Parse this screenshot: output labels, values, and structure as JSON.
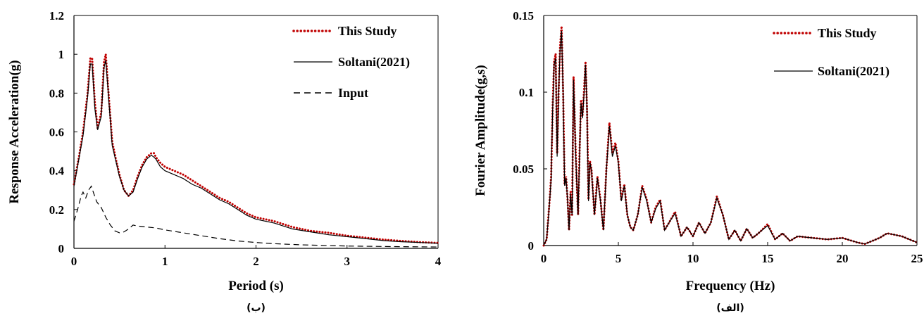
{
  "charts": [
    {
      "id": "left",
      "caption": "(ب)",
      "chart_data": {
        "type": "line",
        "title": "",
        "xlabel": "Period (s)",
        "ylabel": "Response Acceleration(g)",
        "xlim": [
          0,
          4
        ],
        "ylim": [
          0,
          1.2
        ],
        "xticks": [
          "0",
          "1",
          "2",
          "3",
          "4"
        ],
        "xtick_values": [
          0,
          1,
          2,
          3,
          4
        ],
        "yticks": [
          "0",
          "0.2",
          "0.4",
          "0.6",
          "0.8",
          "1",
          "1.2"
        ],
        "ytick_values": [
          0,
          0.2,
          0.4,
          0.6,
          0.8,
          1.0,
          1.2
        ],
        "grid": false,
        "legend_position": "top-right",
        "series": [
          {
            "name": "This Study",
            "color": "#c00000",
            "style": "dotted",
            "x": [
              0,
              0.05,
              0.1,
              0.15,
              0.18,
              0.2,
              0.23,
              0.26,
              0.3,
              0.33,
              0.35,
              0.38,
              0.42,
              0.46,
              0.5,
              0.55,
              0.6,
              0.65,
              0.7,
              0.75,
              0.8,
              0.85,
              0.88,
              0.9,
              0.95,
              1.0,
              1.1,
              1.2,
              1.3,
              1.4,
              1.5,
              1.6,
              1.7,
              1.8,
              1.9,
              2.0,
              2.2,
              2.4,
              2.6,
              2.8,
              3.0,
              3.2,
              3.4,
              3.6,
              3.8,
              4.0
            ],
            "y": [
              0.33,
              0.46,
              0.6,
              0.8,
              0.98,
              0.98,
              0.75,
              0.62,
              0.7,
              0.96,
              1.0,
              0.8,
              0.55,
              0.46,
              0.38,
              0.3,
              0.27,
              0.3,
              0.37,
              0.43,
              0.47,
              0.49,
              0.49,
              0.47,
              0.44,
              0.42,
              0.4,
              0.38,
              0.35,
              0.32,
              0.29,
              0.26,
              0.24,
              0.21,
              0.18,
              0.16,
              0.14,
              0.11,
              0.09,
              0.08,
              0.065,
              0.055,
              0.045,
              0.038,
              0.032,
              0.028
            ]
          },
          {
            "name": "Soltani(2021)",
            "color": "#000000",
            "style": "solid",
            "x": [
              0,
              0.05,
              0.1,
              0.15,
              0.18,
              0.2,
              0.23,
              0.26,
              0.3,
              0.33,
              0.35,
              0.38,
              0.42,
              0.46,
              0.5,
              0.55,
              0.6,
              0.65,
              0.7,
              0.75,
              0.8,
              0.85,
              0.88,
              0.9,
              0.95,
              1.0,
              1.1,
              1.2,
              1.3,
              1.4,
              1.5,
              1.6,
              1.7,
              1.8,
              1.9,
              2.0,
              2.2,
              2.4,
              2.6,
              2.8,
              3.0,
              3.2,
              3.4,
              3.6,
              3.8,
              4.0
            ],
            "y": [
              0.32,
              0.45,
              0.58,
              0.78,
              0.95,
              0.95,
              0.72,
              0.61,
              0.68,
              0.93,
              0.97,
              0.78,
              0.53,
              0.45,
              0.37,
              0.3,
              0.27,
              0.29,
              0.36,
              0.42,
              0.46,
              0.48,
              0.47,
              0.46,
              0.42,
              0.4,
              0.38,
              0.36,
              0.33,
              0.31,
              0.28,
              0.25,
              0.23,
              0.2,
              0.17,
              0.15,
              0.13,
              0.1,
              0.085,
              0.07,
              0.06,
              0.05,
              0.04,
              0.034,
              0.03,
              0.026
            ]
          },
          {
            "name": "Input",
            "color": "#000000",
            "style": "dashed",
            "x": [
              0,
              0.04,
              0.08,
              0.1,
              0.13,
              0.16,
              0.19,
              0.22,
              0.25,
              0.3,
              0.35,
              0.4,
              0.45,
              0.5,
              0.55,
              0.6,
              0.65,
              0.7,
              0.8,
              0.9,
              1.0,
              1.2,
              1.4,
              1.6,
              1.8,
              2.0,
              2.2,
              2.5,
              3.0,
              3.5,
              4.0
            ],
            "y": [
              0.14,
              0.2,
              0.27,
              0.29,
              0.26,
              0.3,
              0.32,
              0.28,
              0.24,
              0.21,
              0.16,
              0.12,
              0.09,
              0.08,
              0.085,
              0.1,
              0.12,
              0.115,
              0.11,
              0.105,
              0.095,
              0.08,
              0.065,
              0.05,
              0.038,
              0.03,
              0.024,
              0.018,
              0.012,
              0.009,
              0.007
            ]
          }
        ]
      }
    },
    {
      "id": "right",
      "caption": "(الف)",
      "chart_data": {
        "type": "line",
        "title": "",
        "xlabel": "Frequency (Hz)",
        "ylabel": "Fourier Amplitude(g,s)",
        "xlim": [
          0,
          25
        ],
        "ylim": [
          0,
          0.15
        ],
        "xticks": [
          "0",
          "5",
          "10",
          "15",
          "20",
          "25"
        ],
        "xtick_values": [
          0,
          5,
          10,
          15,
          20,
          25
        ],
        "yticks": [
          "0",
          "0.05",
          "0.1",
          "0.15"
        ],
        "ytick_values": [
          0,
          0.05,
          0.1,
          0.15
        ],
        "grid": false,
        "legend_position": "top-right",
        "series": [
          {
            "name": "This Study",
            "color": "#c00000",
            "style": "dotted",
            "x": [
              0,
              0.2,
              0.4,
              0.5,
              0.6,
              0.7,
              0.8,
              0.9,
              1.0,
              1.1,
              1.2,
              1.3,
              1.4,
              1.5,
              1.6,
              1.7,
              1.8,
              1.9,
              2.0,
              2.1,
              2.2,
              2.3,
              2.4,
              2.5,
              2.6,
              2.7,
              2.8,
              2.9,
              3.0,
              3.1,
              3.2,
              3.4,
              3.6,
              3.8,
              4.0,
              4.2,
              4.4,
              4.5,
              4.6,
              4.8,
              5.0,
              5.2,
              5.4,
              5.6,
              5.8,
              6.0,
              6.3,
              6.6,
              6.9,
              7.2,
              7.5,
              7.8,
              8.1,
              8.4,
              8.8,
              9.2,
              9.6,
              10.0,
              10.4,
              10.8,
              11.2,
              11.6,
              12.0,
              12.4,
              12.8,
              13.2,
              13.6,
              14.0,
              14.5,
              15.0,
              15.5,
              16.0,
              16.5,
              17.0,
              18.0,
              19.0,
              20.0,
              21.0,
              21.5,
              22.0,
              22.5,
              23.0,
              23.5,
              24.0,
              24.5,
              25.0
            ],
            "y": [
              0,
              0.004,
              0.03,
              0.045,
              0.09,
              0.12,
              0.125,
              0.06,
              0.1,
              0.13,
              0.143,
              0.1,
              0.04,
              0.045,
              0.03,
              0.01,
              0.035,
              0.02,
              0.11,
              0.075,
              0.045,
              0.02,
              0.06,
              0.095,
              0.085,
              0.1,
              0.12,
              0.09,
              0.03,
              0.055,
              0.05,
              0.02,
              0.045,
              0.03,
              0.01,
              0.05,
              0.08,
              0.07,
              0.06,
              0.067,
              0.055,
              0.03,
              0.04,
              0.02,
              0.012,
              0.01,
              0.02,
              0.039,
              0.03,
              0.015,
              0.025,
              0.03,
              0.01,
              0.015,
              0.022,
              0.006,
              0.012,
              0.006,
              0.015,
              0.008,
              0.015,
              0.032,
              0.02,
              0.004,
              0.01,
              0.003,
              0.011,
              0.005,
              0.009,
              0.014,
              0.004,
              0.008,
              0.003,
              0.006,
              0.005,
              0.004,
              0.005,
              0.002,
              0.001,
              0.003,
              0.005,
              0.008,
              0.007,
              0.006,
              0.004,
              0.002
            ]
          },
          {
            "name": "Soltani(2021)",
            "color": "#000000",
            "style": "solid",
            "x": [
              0,
              0.2,
              0.4,
              0.5,
              0.6,
              0.7,
              0.8,
              0.9,
              1.0,
              1.1,
              1.2,
              1.3,
              1.4,
              1.5,
              1.6,
              1.7,
              1.8,
              1.9,
              2.0,
              2.1,
              2.2,
              2.3,
              2.4,
              2.5,
              2.6,
              2.7,
              2.8,
              2.9,
              3.0,
              3.1,
              3.2,
              3.4,
              3.6,
              3.8,
              4.0,
              4.2,
              4.4,
              4.5,
              4.6,
              4.8,
              5.0,
              5.2,
              5.4,
              5.6,
              5.8,
              6.0,
              6.3,
              6.6,
              6.9,
              7.2,
              7.5,
              7.8,
              8.1,
              8.4,
              8.8,
              9.2,
              9.6,
              10.0,
              10.4,
              10.8,
              11.2,
              11.6,
              12.0,
              12.4,
              12.8,
              13.2,
              13.6,
              14.0,
              14.5,
              15.0,
              15.5,
              16.0,
              16.5,
              17.0,
              18.0,
              19.0,
              20.0,
              21.0,
              21.5,
              22.0,
              22.5,
              23.0,
              23.5,
              24.0,
              24.5,
              25.0
            ],
            "y": [
              0,
              0.004,
              0.029,
              0.044,
              0.088,
              0.118,
              0.122,
              0.058,
              0.098,
              0.128,
              0.14,
              0.098,
              0.039,
              0.044,
              0.029,
              0.01,
              0.034,
              0.02,
              0.108,
              0.073,
              0.044,
              0.02,
              0.058,
              0.093,
              0.083,
              0.098,
              0.118,
              0.088,
              0.029,
              0.054,
              0.049,
              0.02,
              0.044,
              0.029,
              0.01,
              0.049,
              0.078,
              0.068,
              0.058,
              0.065,
              0.054,
              0.029,
              0.039,
              0.02,
              0.012,
              0.01,
              0.02,
              0.038,
              0.029,
              0.015,
              0.024,
              0.029,
              0.01,
              0.015,
              0.021,
              0.006,
              0.012,
              0.006,
              0.015,
              0.008,
              0.015,
              0.031,
              0.02,
              0.004,
              0.01,
              0.003,
              0.011,
              0.005,
              0.009,
              0.013,
              0.004,
              0.008,
              0.003,
              0.006,
              0.005,
              0.004,
              0.005,
              0.002,
              0.001,
              0.003,
              0.005,
              0.008,
              0.007,
              0.006,
              0.004,
              0.002
            ]
          }
        ]
      }
    }
  ]
}
